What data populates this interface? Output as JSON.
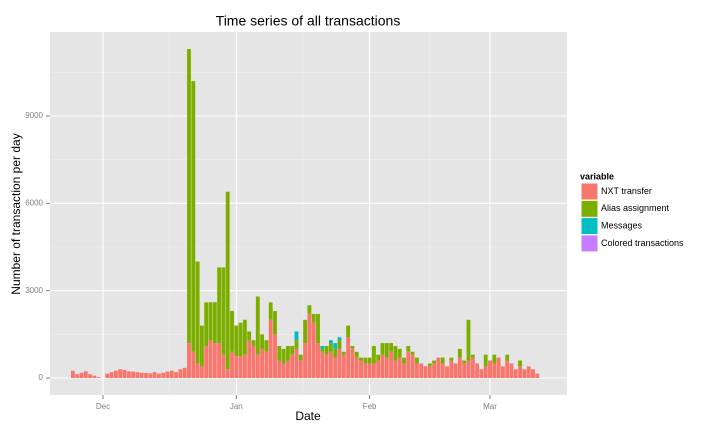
{
  "chart_data": {
    "type": "stacked_bar",
    "title": "Time series of all transactions",
    "x_label": "Date",
    "y_label": "Number of transaction per day",
    "categories": [
      null,
      null,
      null,
      null,
      null,
      null,
      null,
      "Dec",
      null,
      null,
      null,
      null,
      null,
      null,
      null,
      null,
      null,
      null,
      null,
      null,
      null,
      null,
      null,
      null,
      null,
      null,
      null,
      null,
      null,
      null,
      null,
      null,
      null,
      null,
      null,
      null,
      null,
      null,
      "Jan",
      null,
      null,
      null,
      null,
      null,
      null,
      null,
      null,
      null,
      null,
      null,
      null,
      null,
      null,
      null,
      null,
      null,
      null,
      null,
      null,
      null,
      null,
      null,
      null,
      null,
      null,
      null,
      null,
      null,
      null,
      "Feb",
      null,
      null,
      null,
      null,
      null,
      null,
      null,
      null,
      null,
      null,
      null,
      null,
      null,
      null,
      null,
      null,
      null,
      null,
      null,
      null,
      null,
      null,
      null,
      null,
      null,
      null,
      null,
      "Mar",
      null,
      null,
      null,
      null,
      null,
      null,
      null,
      null,
      null,
      null,
      null
    ],
    "series": [
      {
        "name": "NXT transfer",
        "color": "#F8766D",
        "values": [
          250,
          130,
          180,
          230,
          130,
          80,
          30,
          0,
          150,
          200,
          250,
          300,
          280,
          230,
          220,
          200,
          180,
          170,
          160,
          200,
          150,
          180,
          220,
          250,
          200,
          300,
          350,
          1200,
          900,
          500,
          400,
          1100,
          1300,
          1200,
          1200,
          800,
          300,
          900,
          750,
          750,
          800,
          1300,
          1100,
          800,
          1000,
          900,
          2000,
          1500,
          600,
          500,
          600,
          800,
          1000,
          600,
          1200,
          2200,
          1900,
          1200,
          900,
          800,
          900,
          700,
          1000,
          800,
          1400,
          1000,
          700,
          600,
          500,
          500,
          500,
          600,
          800,
          700,
          900,
          600,
          700,
          500,
          900,
          800,
          500,
          500,
          400,
          400,
          500,
          700,
          500,
          400,
          600,
          500,
          700,
          500,
          600,
          700,
          500,
          300,
          400,
          600,
          500,
          700,
          400,
          600,
          500,
          300,
          400,
          300,
          400,
          300,
          150
        ]
      },
      {
        "name": "Alias assignment",
        "color": "#7CAE00",
        "values": [
          0,
          0,
          0,
          0,
          0,
          0,
          0,
          0,
          0,
          0,
          0,
          0,
          0,
          0,
          0,
          0,
          0,
          0,
          0,
          0,
          0,
          0,
          0,
          0,
          0,
          0,
          0,
          10100,
          9300,
          3500,
          1400,
          1500,
          1300,
          1400,
          2600,
          3000,
          6100,
          1400,
          1050,
          1150,
          1200,
          300,
          200,
          2000,
          500,
          400,
          600,
          800,
          500,
          500,
          500,
          300,
          300,
          200,
          800,
          300,
          300,
          1000,
          100,
          300,
          300,
          300,
          300,
          100,
          400,
          100,
          200,
          100,
          200,
          200,
          600,
          200,
          400,
          500,
          300,
          500,
          300,
          200,
          200,
          100,
          200,
          0,
          0,
          100,
          100,
          0,
          200,
          0,
          100,
          0,
          300,
          100,
          1400,
          100,
          0,
          0,
          400,
          0,
          300,
          0,
          0,
          200,
          0,
          0,
          200,
          0,
          0,
          0,
          0
        ]
      },
      {
        "name": "Messages",
        "color": "#00BFC4",
        "values": [
          0,
          0,
          0,
          0,
          0,
          0,
          0,
          0,
          0,
          0,
          0,
          0,
          0,
          0,
          0,
          0,
          0,
          0,
          0,
          0,
          0,
          0,
          0,
          0,
          0,
          0,
          0,
          0,
          0,
          0,
          0,
          0,
          0,
          0,
          0,
          0,
          0,
          0,
          0,
          0,
          0,
          0,
          0,
          0,
          0,
          0,
          0,
          0,
          0,
          0,
          0,
          0,
          300,
          0,
          0,
          0,
          0,
          0,
          100,
          0,
          100,
          200,
          100,
          0,
          0,
          0,
          0,
          0,
          0,
          0,
          0,
          0,
          0,
          0,
          0,
          0,
          0,
          0,
          0,
          0,
          0,
          0,
          0,
          0,
          0,
          0,
          0,
          0,
          0,
          0,
          0,
          0,
          0,
          0,
          0,
          0,
          0,
          0,
          0,
          0,
          0,
          0,
          0,
          0,
          0,
          0,
          0,
          0,
          0
        ]
      },
      {
        "name": "Colored transactions",
        "color": "#C77CFF",
        "values": [
          0,
          0,
          0,
          0,
          0,
          0,
          0,
          0,
          0,
          0,
          0,
          0,
          0,
          0,
          0,
          0,
          0,
          0,
          0,
          0,
          0,
          0,
          0,
          0,
          0,
          0,
          0,
          0,
          0,
          0,
          0,
          0,
          0,
          0,
          0,
          0,
          0,
          0,
          0,
          0,
          0,
          0,
          0,
          0,
          0,
          0,
          0,
          0,
          0,
          0,
          0,
          0,
          0,
          0,
          0,
          0,
          0,
          0,
          0,
          0,
          0,
          0,
          0,
          0,
          0,
          0,
          0,
          0,
          0,
          0,
          0,
          0,
          0,
          0,
          0,
          0,
          0,
          0,
          0,
          0,
          0,
          0,
          0,
          0,
          0,
          0,
          0,
          0,
          0,
          0,
          0,
          0,
          0,
          0,
          0,
          0,
          0,
          0,
          0,
          0,
          0,
          0,
          0,
          0,
          0,
          0,
          0,
          0,
          0
        ]
      }
    ],
    "ylim": [
      -584,
      11886
    ],
    "yticks": [
      0,
      3000,
      6000,
      9000
    ],
    "grid": true,
    "legend_title": "variable",
    "legend_position": "right"
  }
}
